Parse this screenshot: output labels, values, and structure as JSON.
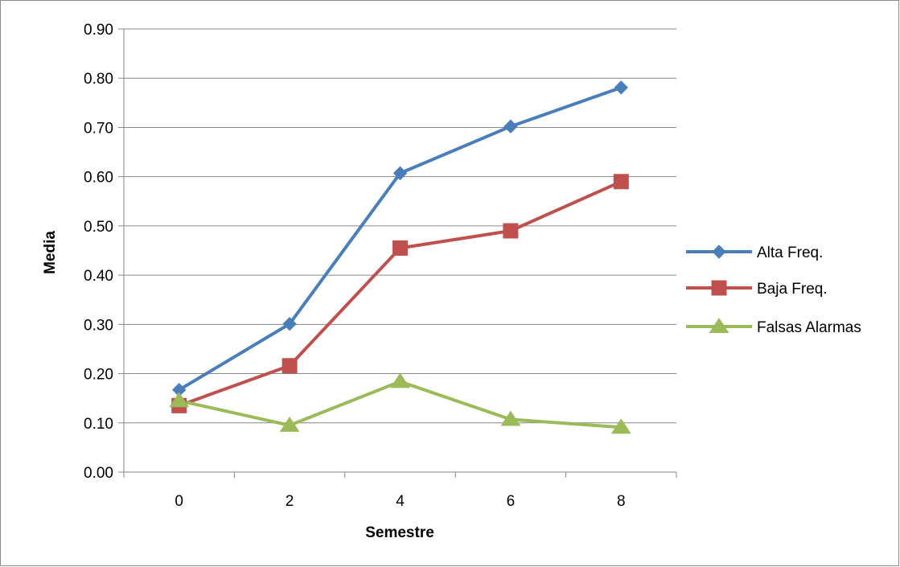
{
  "chart_data": {
    "type": "line",
    "title": "",
    "xlabel": "Semestre",
    "ylabel": "Media",
    "x": [
      0,
      2,
      4,
      6,
      8
    ],
    "x_tick_labels": [
      "0",
      "2",
      "4",
      "6",
      "8"
    ],
    "ylim": [
      0,
      0.9
    ],
    "y_tick_labels": [
      "0.00",
      "0.10",
      "0.20",
      "0.30",
      "0.40",
      "0.50",
      "0.60",
      "0.70",
      "0.80",
      "0.90"
    ],
    "grid": "horizontal",
    "legend_position": "right",
    "series": [
      {
        "name": "Alta Freq.",
        "color": "#4A7EBB",
        "marker": "diamond",
        "values": [
          0.167,
          0.301,
          0.607,
          0.702,
          0.781
        ]
      },
      {
        "name": "Baja Freq.",
        "color": "#C0504D",
        "marker": "square",
        "values": [
          0.135,
          0.216,
          0.455,
          0.49,
          0.59
        ]
      },
      {
        "name": "Falsas Alarmas",
        "color": "#9BBB59",
        "marker": "triangle",
        "values": [
          0.145,
          0.095,
          0.184,
          0.107,
          0.091
        ]
      }
    ]
  }
}
